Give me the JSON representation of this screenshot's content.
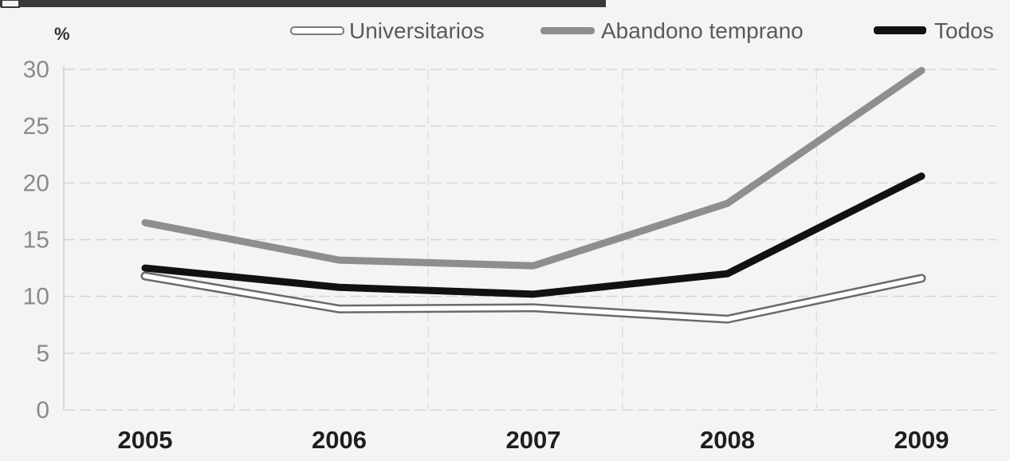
{
  "chart_data": {
    "type": "line",
    "unit_label": "%",
    "x": [
      "2005",
      "2006",
      "2007",
      "2008",
      "2009"
    ],
    "ylim": [
      0,
      30
    ],
    "yticks": [
      "0",
      "5",
      "10",
      "15",
      "20",
      "25",
      "30"
    ],
    "grid": true,
    "legend_position": "top-right",
    "series": [
      {
        "name": "Universitarios",
        "values": [
          11.8,
          8.9,
          9.0,
          8.0,
          11.6
        ],
        "color": "#ffffff",
        "outline": "#6a6a6a",
        "style": "outlined"
      },
      {
        "name": "Abandono temprano",
        "values": [
          16.5,
          13.2,
          12.7,
          18.2,
          29.9
        ],
        "color": "#8e8e8e",
        "style": "solid"
      },
      {
        "name": "Todos",
        "values": [
          12.5,
          10.8,
          10.2,
          12.0,
          20.6
        ],
        "color": "#111111",
        "style": "solid"
      }
    ]
  }
}
